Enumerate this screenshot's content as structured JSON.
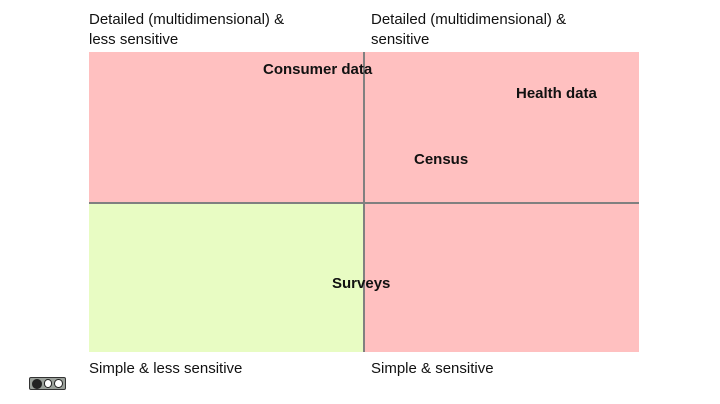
{
  "corners": {
    "top_left": "Detailed (multidimensional) &\nless sensitive",
    "top_right": "Detailed (multidimensional) &\nsensitive",
    "bottom_left": "Simple & less sensitive",
    "bottom_right": "Simple & sensitive"
  },
  "items": {
    "consumer": "Consumer data",
    "health": "Health data",
    "census": "Census",
    "surveys": "Surveys"
  },
  "colors": {
    "sensitive": "#ffc0c0",
    "less_sensitive_detailed": "#ffc0c0",
    "less_sensitive_simple": "#e8fcc3",
    "axis": "#808080"
  },
  "license_icon": "creative-commons-badge"
}
